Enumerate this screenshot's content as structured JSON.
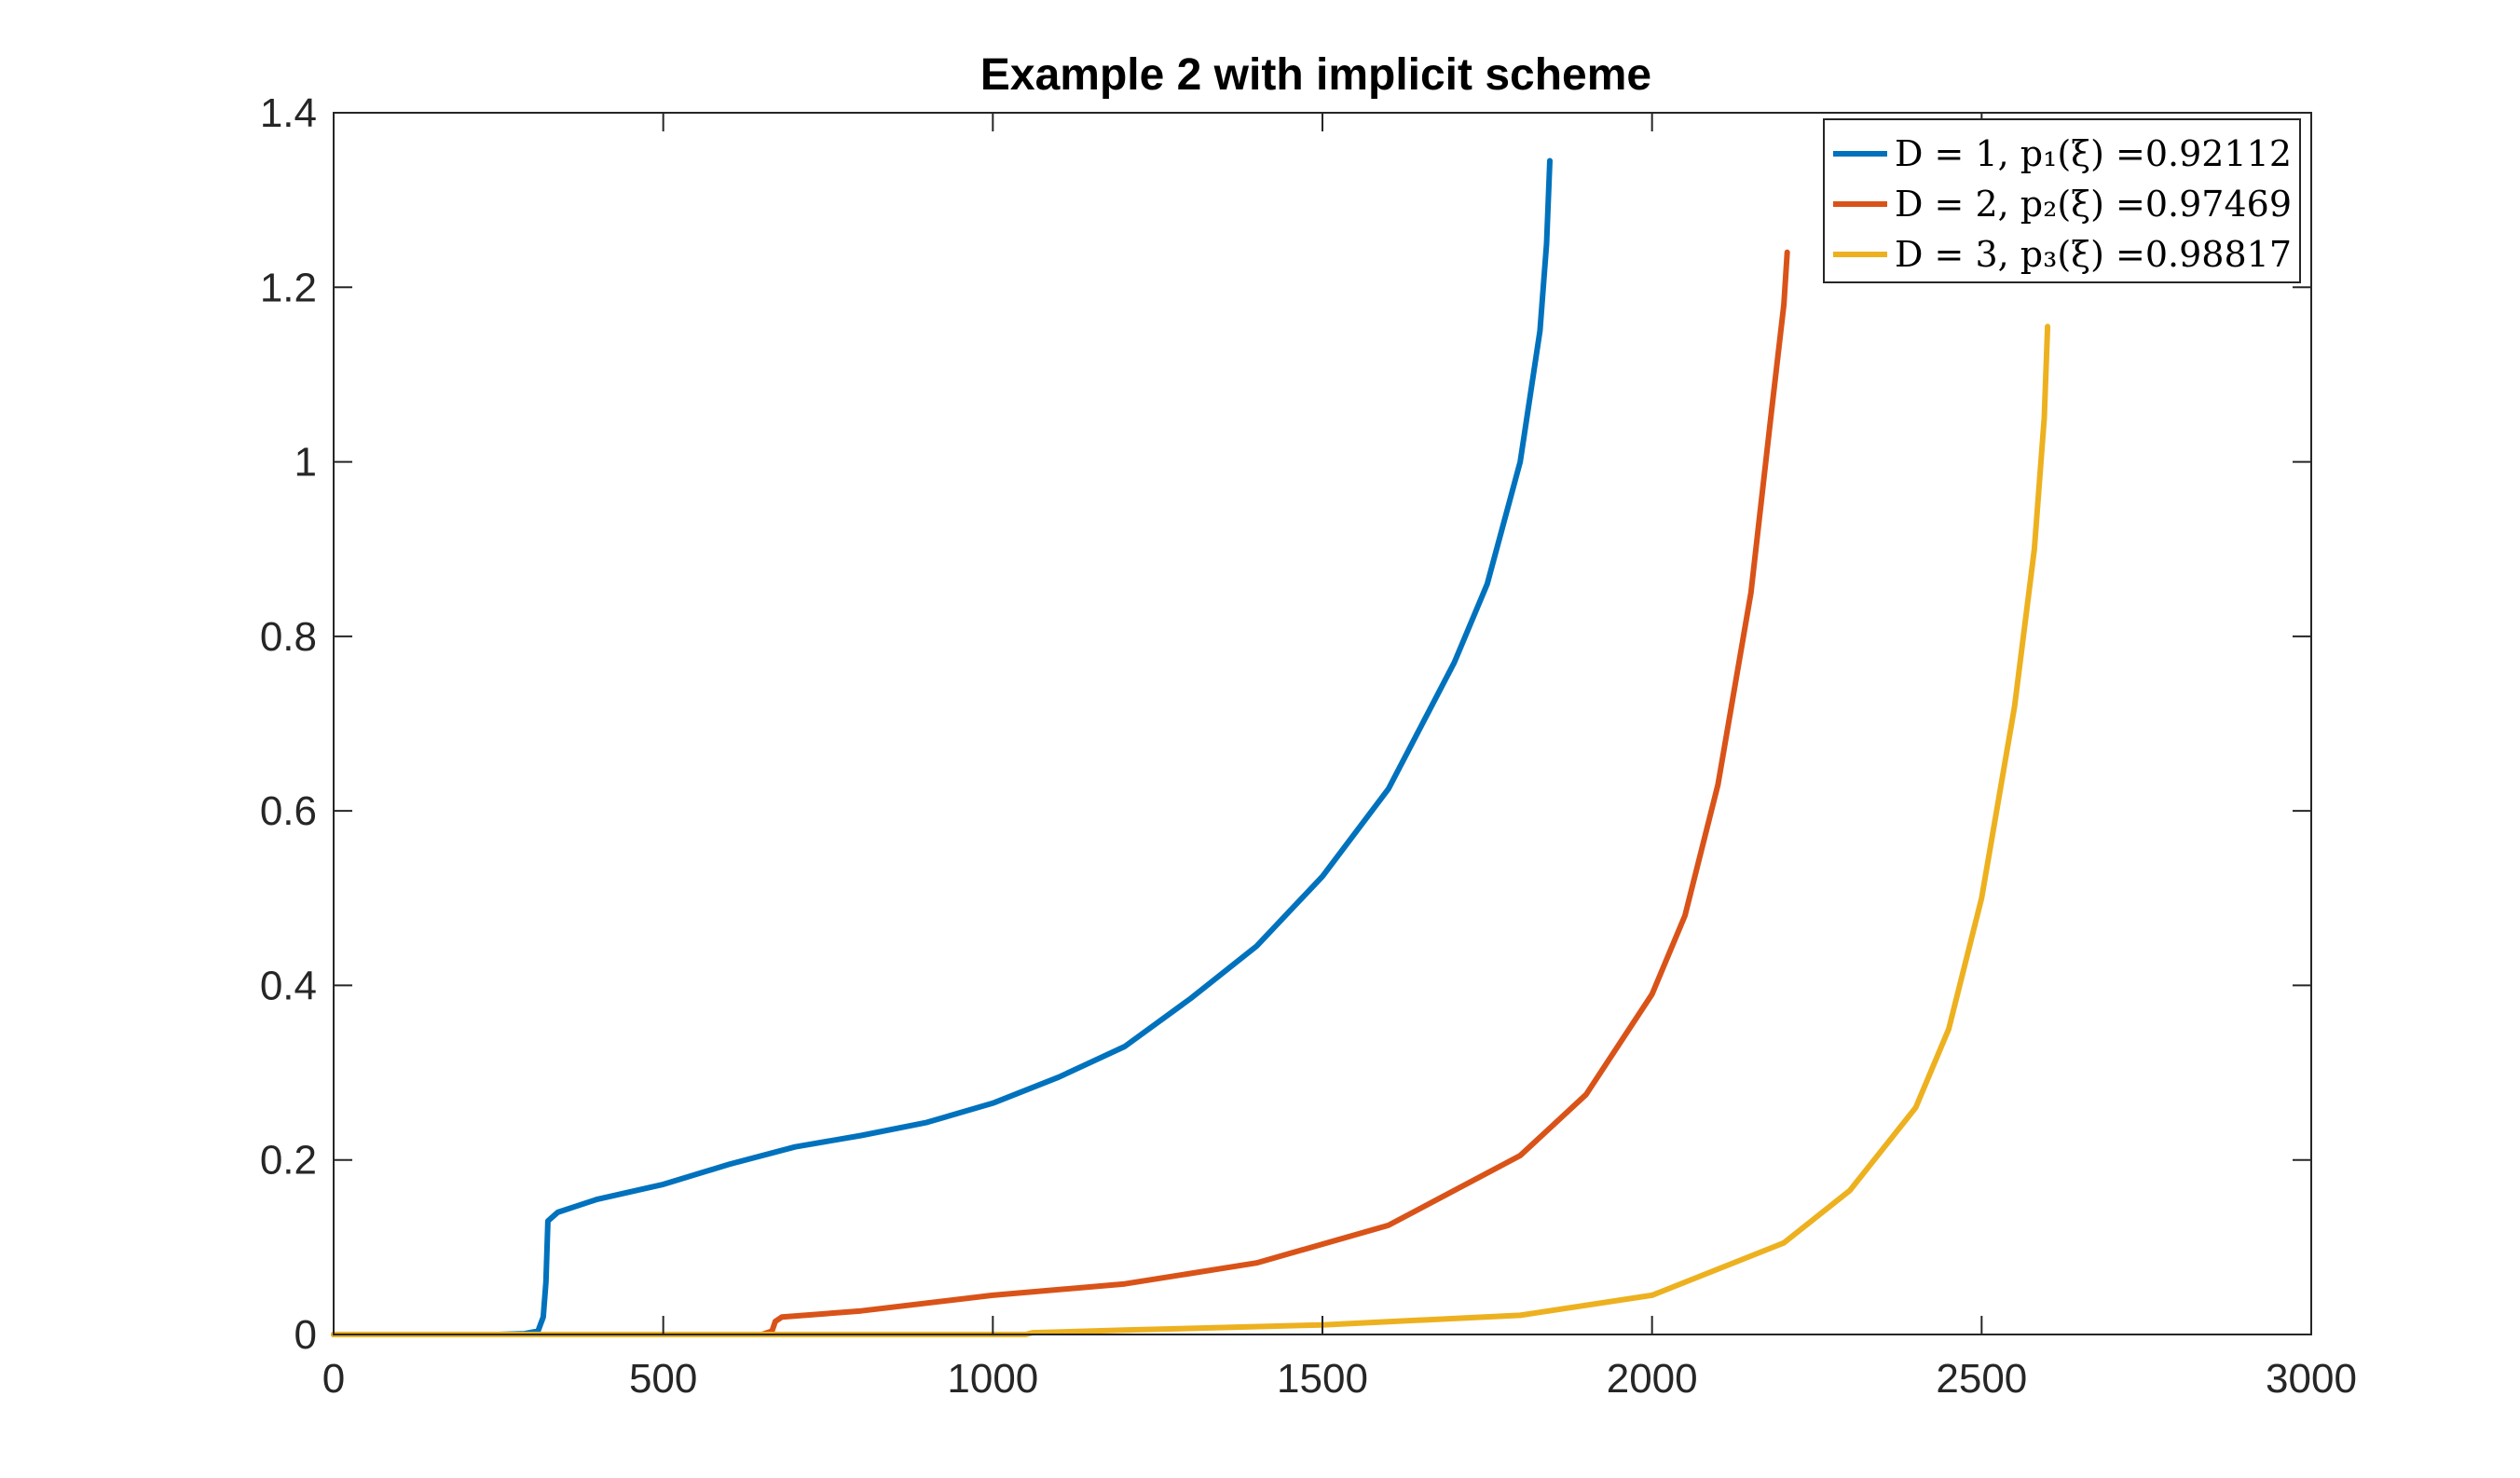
{
  "chart_data": {
    "type": "line",
    "title": "Example 2 with implicit scheme",
    "xlabel": "",
    "ylabel": "",
    "xlim": [
      0,
      3000
    ],
    "ylim": [
      0,
      1.4
    ],
    "xticks": [
      0,
      500,
      1000,
      1500,
      2000,
      2500,
      3000
    ],
    "xtick_labels": [
      "0",
      "500",
      "1000",
      "1500",
      "2000",
      "2500",
      "3000"
    ],
    "yticks": [
      0,
      0.2,
      0.4,
      0.6,
      0.8,
      1.0,
      1.2,
      1.4
    ],
    "ytick_labels": [
      "0",
      "0.2",
      "0.4",
      "0.6",
      "0.8",
      "1",
      "1.2",
      "1.4"
    ],
    "grid": false,
    "legend_position": "top-right",
    "series": [
      {
        "name": "D = 1, p₁(ξ) =0.92112",
        "color": "#0072BD",
        "points": [
          [
            0,
            0
          ],
          [
            250,
            0
          ],
          [
            290,
            0.001
          ],
          [
            310,
            0.004
          ],
          [
            318,
            0.02
          ],
          [
            322,
            0.06
          ],
          [
            325,
            0.13
          ],
          [
            340,
            0.14
          ],
          [
            400,
            0.155
          ],
          [
            500,
            0.172
          ],
          [
            600,
            0.195
          ],
          [
            700,
            0.215
          ],
          [
            800,
            0.228
          ],
          [
            900,
            0.243
          ],
          [
            1000,
            0.265
          ],
          [
            1100,
            0.295
          ],
          [
            1200,
            0.33
          ],
          [
            1300,
            0.385
          ],
          [
            1400,
            0.445
          ],
          [
            1500,
            0.525
          ],
          [
            1600,
            0.625
          ],
          [
            1700,
            0.77
          ],
          [
            1750,
            0.86
          ],
          [
            1800,
            1.0
          ],
          [
            1830,
            1.15
          ],
          [
            1840,
            1.25
          ],
          [
            1845,
            1.345
          ]
        ]
      },
      {
        "name": "D = 2, p₂(ξ) =0.97469",
        "color": "#D95319",
        "points": [
          [
            0,
            0
          ],
          [
            650,
            0
          ],
          [
            665,
            0.004
          ],
          [
            670,
            0.015
          ],
          [
            680,
            0.02
          ],
          [
            800,
            0.027
          ],
          [
            1000,
            0.045
          ],
          [
            1200,
            0.058
          ],
          [
            1400,
            0.082
          ],
          [
            1600,
            0.125
          ],
          [
            1800,
            0.205
          ],
          [
            1900,
            0.275
          ],
          [
            2000,
            0.39
          ],
          [
            2050,
            0.48
          ],
          [
            2100,
            0.63
          ],
          [
            2150,
            0.85
          ],
          [
            2180,
            1.05
          ],
          [
            2200,
            1.18
          ],
          [
            2205,
            1.24
          ]
        ]
      },
      {
        "name": "D = 3, p₃(ξ) =0.98817",
        "color": "#EDB120",
        "points": [
          [
            0,
            0
          ],
          [
            1050,
            0
          ],
          [
            1060,
            0.002
          ],
          [
            1200,
            0.005
          ],
          [
            1500,
            0.011
          ],
          [
            1800,
            0.022
          ],
          [
            2000,
            0.045
          ],
          [
            2200,
            0.105
          ],
          [
            2300,
            0.165
          ],
          [
            2400,
            0.26
          ],
          [
            2450,
            0.35
          ],
          [
            2500,
            0.5
          ],
          [
            2550,
            0.72
          ],
          [
            2580,
            0.9
          ],
          [
            2595,
            1.05
          ],
          [
            2600,
            1.155
          ]
        ]
      }
    ]
  }
}
